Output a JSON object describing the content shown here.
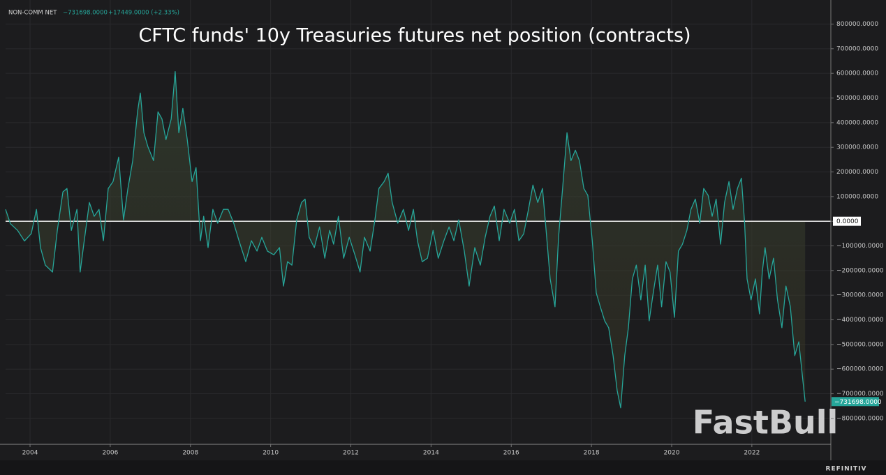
{
  "chart_data": {
    "type": "line",
    "title": "CFTC funds' 10y Treasuries futures net position (contracts)",
    "last_value_label": "−731698.0000",
    "change_label": "+17449.0000 (+2.33%)",
    "watermark": "FastBull",
    "footer": "REFINITIV",
    "xlim": [
      2003.39,
      2023.97
    ],
    "xticks": [
      2004,
      2006,
      2008,
      2010,
      2012,
      2014,
      2016,
      2018,
      2020,
      2022
    ],
    "ylim": [
      -905000,
      875000
    ],
    "yticks": [
      {
        "value": -800000,
        "label": "−800000.0000"
      },
      {
        "value": -700000,
        "label": "−700000.0000"
      },
      {
        "value": -600000,
        "label": "−600000.0000"
      },
      {
        "value": -500000,
        "label": "−500000.0000"
      },
      {
        "value": -400000,
        "label": "−400000.0000"
      },
      {
        "value": -300000,
        "label": "−300000.0000"
      },
      {
        "value": -200000,
        "label": "−200000.0000"
      },
      {
        "value": -100000,
        "label": "−100000.0000"
      },
      {
        "value": 0,
        "label": "0.0000"
      },
      {
        "value": 100000,
        "label": "100000.0000"
      },
      {
        "value": 200000,
        "label": "200000.0000"
      },
      {
        "value": 300000,
        "label": "300000.0000"
      },
      {
        "value": 400000,
        "label": "400000.0000"
      },
      {
        "value": 500000,
        "label": "500000.0000"
      },
      {
        "value": 600000,
        "label": "600000.0000"
      },
      {
        "value": 700000,
        "label": "700000.0000"
      },
      {
        "value": 800000,
        "label": "800000.0000"
      }
    ],
    "grid": true,
    "zero_line": true,
    "x": [
      2003.39,
      2003.51,
      2003.69,
      2003.86,
      2004.03,
      2004.16,
      2004.26,
      2004.38,
      2004.56,
      2004.68,
      2004.82,
      2004.92,
      2005.03,
      2005.17,
      2005.25,
      2005.34,
      2005.48,
      2005.6,
      2005.72,
      2005.83,
      2005.95,
      2006.07,
      2006.21,
      2006.33,
      2006.44,
      2006.56,
      2006.68,
      2006.75,
      2006.84,
      2006.94,
      2007.08,
      2007.19,
      2007.29,
      2007.39,
      2007.52,
      2007.62,
      2007.71,
      2007.81,
      2007.92,
      2008.04,
      2008.14,
      2008.25,
      2008.33,
      2008.44,
      2008.56,
      2008.68,
      2008.82,
      2008.94,
      2009.08,
      2009.21,
      2009.38,
      2009.52,
      2009.66,
      2009.78,
      2009.92,
      2010.08,
      2010.22,
      2010.32,
      2010.42,
      2010.53,
      2010.65,
      2010.77,
      2010.86,
      2010.96,
      2011.09,
      2011.22,
      2011.35,
      2011.47,
      2011.57,
      2011.69,
      2011.82,
      2011.96,
      2012.1,
      2012.23,
      2012.34,
      2012.48,
      2012.6,
      2012.7,
      2012.83,
      2012.93,
      2013.03,
      2013.17,
      2013.31,
      2013.44,
      2013.56,
      2013.66,
      2013.78,
      2013.91,
      2014.05,
      2014.18,
      2014.32,
      2014.45,
      2014.57,
      2014.69,
      2014.83,
      2014.95,
      2015.09,
      2015.23,
      2015.35,
      2015.47,
      2015.58,
      2015.7,
      2015.82,
      2015.96,
      2016.08,
      2016.19,
      2016.31,
      2016.43,
      2016.54,
      2016.66,
      2016.78,
      2016.87,
      2016.97,
      2017.09,
      2017.18,
      2017.28,
      2017.39,
      2017.49,
      2017.6,
      2017.7,
      2017.81,
      2017.91,
      2018.02,
      2018.12,
      2018.22,
      2018.33,
      2018.43,
      2018.54,
      2018.64,
      2018.73,
      2018.83,
      2018.92,
      2019.02,
      2019.12,
      2019.23,
      2019.34,
      2019.44,
      2019.54,
      2019.65,
      2019.75,
      2019.86,
      2019.96,
      2020.07,
      2020.17,
      2020.27,
      2020.38,
      2020.48,
      2020.59,
      2020.7,
      2020.8,
      2020.91,
      2021.01,
      2021.11,
      2021.22,
      2021.32,
      2021.43,
      2021.53,
      2021.64,
      2021.74,
      2021.82,
      2021.88,
      2021.98,
      2022.09,
      2022.19,
      2022.26,
      2022.33,
      2022.43,
      2022.54,
      2022.64,
      2022.75,
      2022.85,
      2022.96,
      2023.07,
      2023.17,
      2023.28,
      2023.33
    ],
    "series": [
      {
        "name": "NON-COMM NET",
        "color": "#26a69a",
        "values": [
          48000,
          -10000,
          -37000,
          -80000,
          -50000,
          48000,
          -107000,
          -178000,
          -206000,
          -37000,
          119000,
          133000,
          -37000,
          48000,
          -206000,
          -93000,
          76000,
          20000,
          48000,
          -79000,
          133000,
          161000,
          260000,
          6000,
          133000,
          246000,
          444000,
          520000,
          359000,
          302000,
          246000,
          444000,
          415000,
          331000,
          415000,
          607000,
          359000,
          458000,
          331000,
          161000,
          218000,
          -79000,
          20000,
          -107000,
          48000,
          -8000,
          48000,
          48000,
          -8000,
          -79000,
          -164000,
          -79000,
          -121000,
          -65000,
          -121000,
          -136000,
          -107000,
          -263000,
          -164000,
          -178000,
          6000,
          76000,
          90000,
          -65000,
          -107000,
          -23000,
          -150000,
          -37000,
          -93000,
          20000,
          -150000,
          -65000,
          -136000,
          -206000,
          -65000,
          -121000,
          6000,
          133000,
          161000,
          195000,
          76000,
          -8000,
          48000,
          -37000,
          48000,
          -79000,
          -164000,
          -150000,
          -37000,
          -150000,
          -79000,
          -23000,
          -79000,
          6000,
          -121000,
          -263000,
          -107000,
          -178000,
          -65000,
          20000,
          62000,
          -79000,
          48000,
          -8000,
          48000,
          -79000,
          -51000,
          48000,
          147000,
          76000,
          133000,
          -37000,
          -234000,
          -347000,
          -65000,
          133000,
          359000,
          246000,
          288000,
          246000,
          133000,
          105000,
          -79000,
          -291000,
          -347000,
          -404000,
          -432000,
          -545000,
          -686000,
          -757000,
          -545000,
          -432000,
          -234000,
          -178000,
          -319000,
          -178000,
          -404000,
          -291000,
          -178000,
          -347000,
          -164000,
          -206000,
          -390000,
          -121000,
          -93000,
          -37000,
          48000,
          90000,
          -8000,
          133000,
          105000,
          20000,
          90000,
          -93000,
          76000,
          161000,
          48000,
          133000,
          175000,
          -8000,
          -234000,
          -319000,
          -234000,
          -376000,
          -206000,
          -107000,
          -234000,
          -150000,
          -319000,
          -432000,
          -263000,
          -347000,
          -545000,
          -489000,
          -658000,
          -731698
        ]
      }
    ]
  }
}
